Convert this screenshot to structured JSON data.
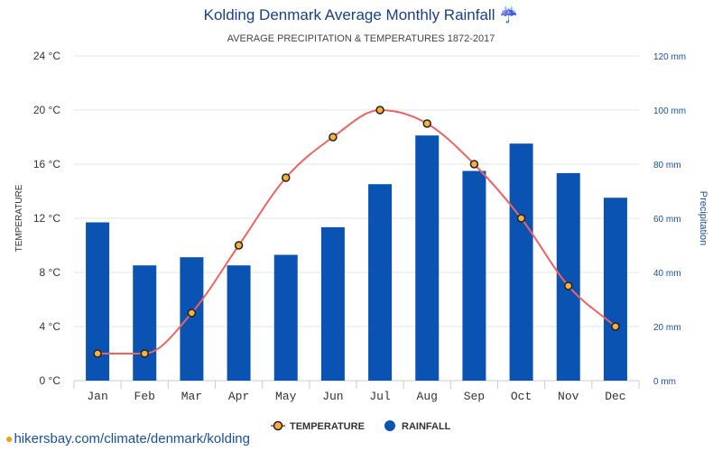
{
  "chart_data": {
    "type": "bar",
    "title": "Kolding Denmark Average Monthly Rainfall ☔",
    "subtitle": "AVERAGE PRECIPITATION & TEMPERATURES 1872-2017",
    "categories": [
      "Jan",
      "Feb",
      "Mar",
      "Apr",
      "May",
      "Jun",
      "Jul",
      "Aug",
      "Sep",
      "Oct",
      "Nov",
      "Dec"
    ],
    "series": [
      {
        "name": "RAINFALL",
        "type": "bar",
        "axis": "right",
        "color": "#0b53b3",
        "values": [
          58.5,
          42.6,
          45.6,
          42.6,
          46.5,
          56.7,
          72.6,
          90.6,
          77.5,
          87.6,
          76.7,
          67.6
        ]
      },
      {
        "name": "TEMPERATURE",
        "type": "line",
        "axis": "left",
        "color": "#ef6262",
        "marker_fill": "#f5b041",
        "values": [
          2,
          2,
          5,
          10,
          15,
          18,
          20,
          19,
          16,
          12,
          7,
          4
        ]
      }
    ],
    "y_left": {
      "label": "TEMPERATURE",
      "ylim": [
        0,
        24
      ],
      "tick_values": [
        0,
        4,
        8,
        12,
        16,
        20,
        24
      ],
      "tick_labels": [
        "0 °C",
        "4 °C",
        "8 °C",
        "12 °C",
        "16 °C",
        "20 °C",
        "24 °C"
      ]
    },
    "y_right": {
      "label": "Precipitation",
      "ylim": [
        0,
        120
      ],
      "tick_values": [
        0,
        20,
        40,
        60,
        80,
        100,
        120
      ],
      "tick_labels": [
        "0 mm",
        "20 mm",
        "40 mm",
        "60 mm",
        "80 mm",
        "100 mm",
        "120 mm"
      ]
    },
    "grid": true,
    "legend": {
      "placement": "bottom-center",
      "items": [
        {
          "label": "TEMPERATURE",
          "kind": "line-marker"
        },
        {
          "label": "RAINFALL",
          "kind": "dot"
        }
      ]
    }
  },
  "source_link": "hikersbay.com/climate/denmark/kolding",
  "colors": {
    "title": "#1a3f86",
    "bar": "#0b53b3",
    "line": "#ef6262",
    "marker": "#f5b041",
    "grid": "#e6e6e6",
    "right_axis": "#1a4fa0"
  }
}
